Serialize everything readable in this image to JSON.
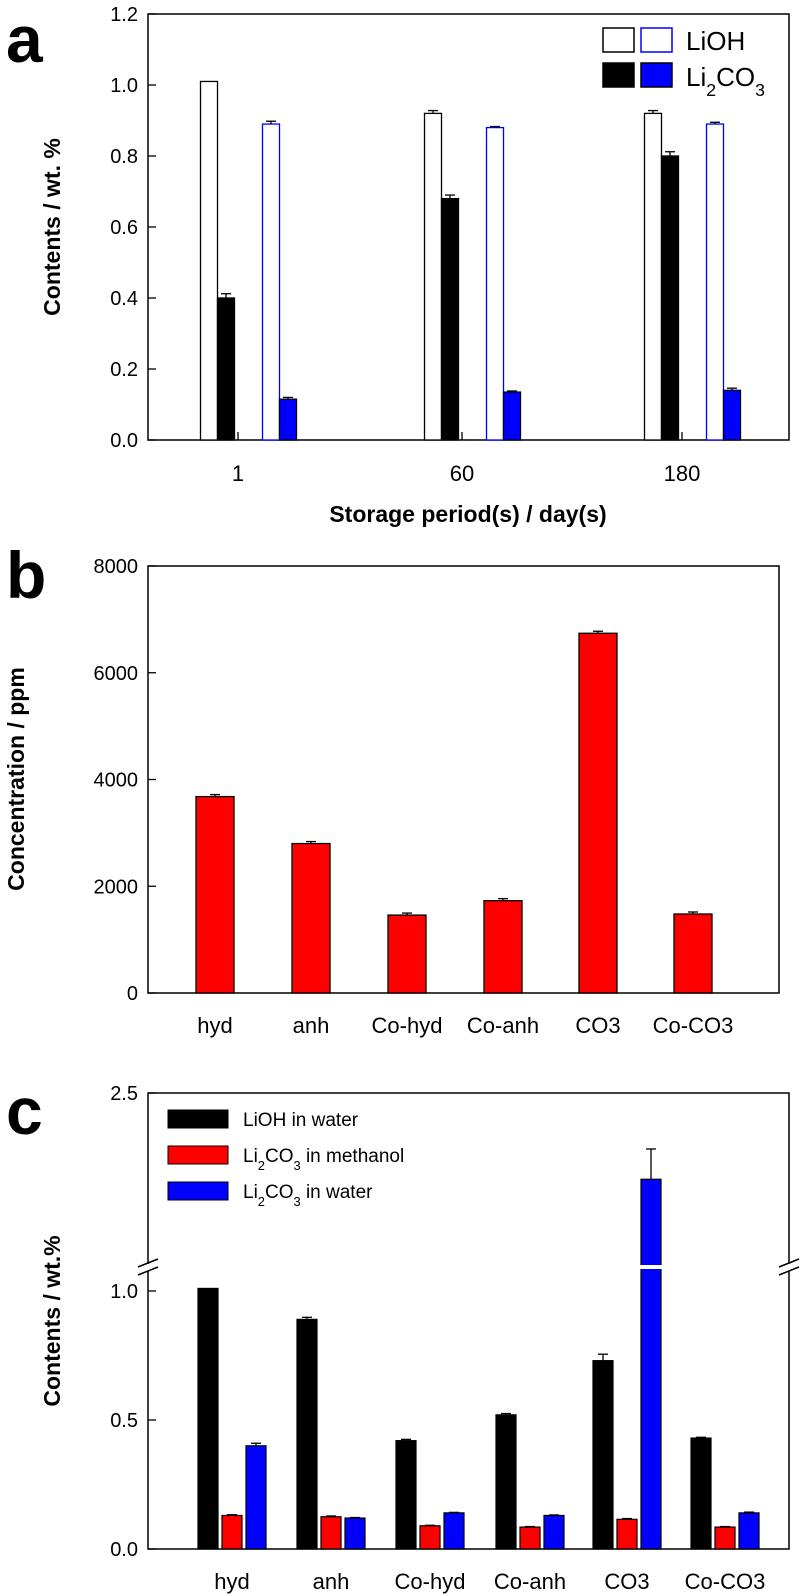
{
  "chart_data": [
    {
      "panel": "a",
      "type": "bar",
      "categories": [
        "1",
        "60",
        "180"
      ],
      "series": [
        {
          "name": "LiOH",
          "group": "black",
          "fill": "#ffffff",
          "stroke": "#000000",
          "values": [
            1.01,
            0.92,
            0.92
          ],
          "errors": [
            0,
            0.008,
            0.008
          ]
        },
        {
          "name": "Li2CO3",
          "group": "black",
          "fill": "#000000",
          "stroke": "#000000",
          "values": [
            0.4,
            0.68,
            0.8
          ],
          "errors": [
            0.012,
            0.01,
            0.012
          ]
        },
        {
          "name": "LiOH",
          "group": "blue",
          "fill": "#ffffff",
          "stroke": "#0000ff",
          "values": [
            0.89,
            0.88,
            0.89
          ],
          "errors": [
            0.008,
            0.003,
            0.005
          ]
        },
        {
          "name": "Li2CO3",
          "group": "blue",
          "fill": "#0000ff",
          "stroke": "#000000",
          "values": [
            0.115,
            0.135,
            0.14
          ],
          "errors": [
            0.005,
            0.003,
            0.006
          ]
        }
      ],
      "xlabel": "Storage period(s) / day(s)",
      "ylabel": "Contents / wt. %",
      "ylim": [
        0,
        1.2
      ],
      "yticks": [
        "0.0",
        "0.2",
        "0.4",
        "0.6",
        "0.8",
        "1.0",
        "1.2"
      ],
      "legend": {
        "position": "top-right",
        "entries": [
          "LiOH",
          "Li2CO3"
        ]
      }
    },
    {
      "panel": "b",
      "type": "bar",
      "categories": [
        "hyd",
        "anh",
        "Co-hyd",
        "Co-anh",
        "CO3",
        "Co-CO3"
      ],
      "series": [
        {
          "name": "",
          "fill": "#ff0000",
          "values": [
            3680,
            2800,
            1460,
            1730,
            6740,
            1480
          ],
          "errors": [
            20,
            15,
            10,
            15,
            30,
            10
          ]
        }
      ],
      "xlabel": "",
      "ylabel": "Concentration / ppm",
      "ylim": [
        0,
        8000
      ],
      "yticks": [
        "0",
        "2000",
        "4000",
        "6000",
        "8000"
      ]
    },
    {
      "panel": "c",
      "type": "bar",
      "categories": [
        "hyd",
        "anh",
        "Co-hyd",
        "Co-anh",
        "CO3",
        "Co-CO3"
      ],
      "series": [
        {
          "name": "LiOH in water",
          "fill": "#000000",
          "values": [
            1.01,
            0.89,
            0.42,
            0.52,
            0.73,
            0.43
          ],
          "errors": [
            0,
            0.008,
            0.005,
            0.005,
            0.025,
            0.003
          ]
        },
        {
          "name": "Li2CO3 in methanol",
          "fill": "#ff0000",
          "values": [
            0.13,
            0.125,
            0.09,
            0.085,
            0.115,
            0.085
          ],
          "errors": [
            0.003,
            0.003,
            0.002,
            0.002,
            0.003,
            0.002
          ]
        },
        {
          "name": "Li2CO3 in water",
          "fill": "#0000ff",
          "values": [
            0.4,
            0.12,
            0.14,
            0.13,
            1.93,
            0.14
          ],
          "errors": [
            0.01,
            0.002,
            0.002,
            0.002,
            0.2,
            0.003
          ]
        }
      ],
      "xlabel": "",
      "ylabel": "Contents / wt.%",
      "axis_break": true,
      "ylim": [
        0,
        2.5
      ],
      "yticks": [
        "0.0",
        "0.5",
        "1.0",
        "2.5"
      ],
      "legend": {
        "position": "top-left",
        "entries": [
          "LiOH in water",
          "Li2CO3 in methanol",
          "Li2CO3 in water"
        ]
      }
    }
  ],
  "panel_labels": [
    "a",
    "b",
    "c"
  ]
}
